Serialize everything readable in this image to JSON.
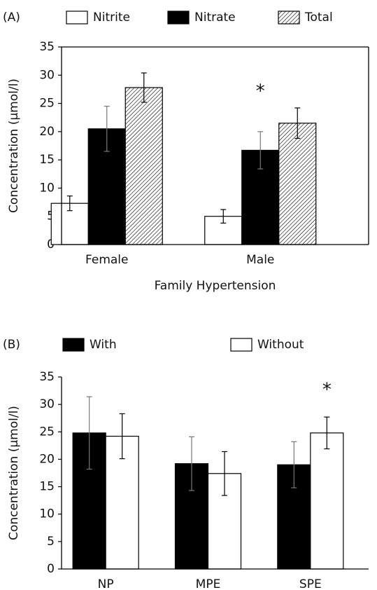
{
  "chart_data": [
    {
      "type": "bar",
      "panel": "(A)",
      "y_label": "Concentration (µmol/l)",
      "x_label": "Family Hypertension",
      "categories": [
        "Female",
        "Male"
      ],
      "series": [
        {
          "name": "Nitrite",
          "color": "#ffffff",
          "values": [
            7.3,
            5.0
          ],
          "errors": [
            1.3,
            1.2
          ]
        },
        {
          "name": "Nitrate",
          "color": "#000000",
          "values": [
            20.5,
            16.7
          ],
          "errors": [
            4.0,
            3.3
          ]
        },
        {
          "name": "Total",
          "color": "#000000",
          "pattern": "hatch",
          "values": [
            27.8,
            21.5
          ],
          "errors": [
            2.6,
            2.7
          ]
        }
      ],
      "ylim": [
        0,
        35
      ],
      "yticks": [
        0,
        5,
        10,
        15,
        20,
        25,
        30,
        35
      ],
      "annotations": [
        {
          "text": "*",
          "x": "Male",
          "y": 27.7
        }
      ]
    },
    {
      "type": "bar",
      "panel": "(B)",
      "y_label": "Concentration (µmol/l)",
      "categories": [
        "NP",
        "MPE",
        "SPE"
      ],
      "series": [
        {
          "name": "With",
          "color": "#000000",
          "values": [
            24.8,
            19.2,
            19.0
          ],
          "errors": [
            6.6,
            4.9,
            4.2
          ]
        },
        {
          "name": "Without",
          "color": "#ffffff",
          "values": [
            24.2,
            17.4,
            24.8
          ],
          "errors": [
            4.1,
            4.0,
            2.9
          ]
        }
      ],
      "ylim": [
        0,
        35
      ],
      "yticks": [
        0,
        5,
        10,
        15,
        20,
        25,
        30,
        35
      ],
      "annotations": [
        {
          "text": "*",
          "x": "SPE",
          "y": 33.2
        }
      ]
    }
  ]
}
